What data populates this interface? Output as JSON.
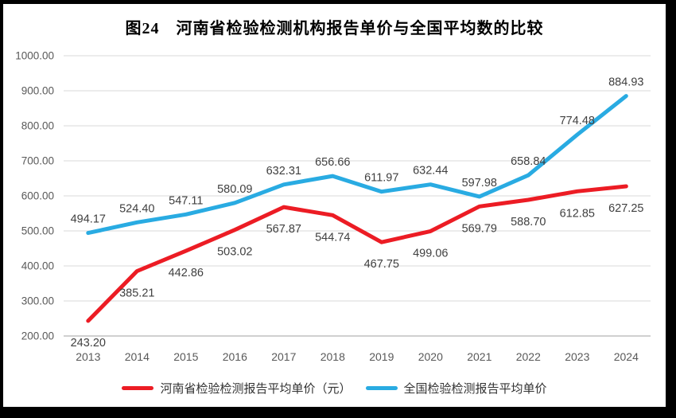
{
  "frame": {
    "border_color": "#000000",
    "background": "#ffffff"
  },
  "chart_data": {
    "type": "line",
    "title": "图24　河南省检验检测机构报告单价与全国平均数的比较",
    "categories": [
      "2013",
      "2014",
      "2015",
      "2016",
      "2017",
      "2018",
      "2019",
      "2020",
      "2021",
      "2022",
      "2023",
      "2024"
    ],
    "series": [
      {
        "name": "河南省检验检测报告平均单价（元）",
        "color": "#EC1C24",
        "values": [
          243.2,
          385.21,
          442.86,
          503.02,
          567.87,
          544.74,
          467.75,
          499.06,
          569.79,
          588.7,
          612.85,
          627.25
        ],
        "label_position": "below"
      },
      {
        "name": "全国检验检测报告平均单价",
        "color": "#29ABE2",
        "values": [
          494.17,
          524.4,
          547.11,
          580.09,
          632.31,
          656.66,
          611.97,
          632.44,
          597.98,
          658.84,
          774.48,
          884.93
        ],
        "label_position": "above"
      }
    ],
    "ylim": [
      200,
      1000
    ],
    "yticks": [
      "200.00",
      "300.00",
      "400.00",
      "500.00",
      "600.00",
      "700.00",
      "800.00",
      "900.00",
      "1000.00"
    ],
    "value_label_decimals": 2,
    "grid": true,
    "gridline_color": "#D9D9D9",
    "axis_line_color": "#C0C0C0",
    "tick_label_color": "#595959",
    "data_label_color": "#404040",
    "legend_position": "bottom",
    "xlabel": "",
    "ylabel": ""
  }
}
